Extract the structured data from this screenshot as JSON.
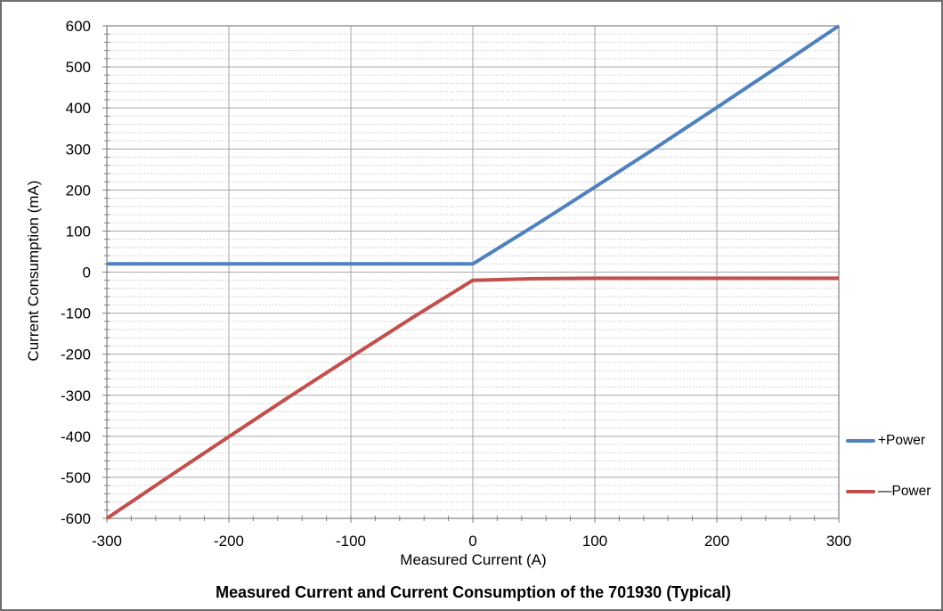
{
  "chart_data": {
    "type": "line",
    "title": "Measured Current and Current Consumption of the 701930 (Typical)",
    "xlabel": "Measured Current (A)",
    "ylabel": "Current Consumption (mA)",
    "xlim": [
      -300,
      300
    ],
    "ylim": [
      -600,
      600
    ],
    "x_major_ticks": [
      -300,
      -200,
      -100,
      0,
      100,
      200,
      300
    ],
    "y_major_ticks": [
      600,
      500,
      400,
      300,
      200,
      100,
      0,
      -100,
      -200,
      -300,
      -400,
      -500,
      -600
    ],
    "x_minor_step": 20,
    "y_minor_step": 20,
    "grid": {
      "horizontal_major": "solid",
      "horizontal_minor": "dotted",
      "vertical_major": "solid",
      "vertical_minor": "none"
    },
    "legend_position": "right-outside",
    "series": [
      {
        "name": "+Power",
        "slug": "plus-power",
        "color": "#4F81BD",
        "points": [
          [
            -300,
            20
          ],
          [
            -250,
            20
          ],
          [
            -200,
            20
          ],
          [
            -150,
            20
          ],
          [
            -100,
            20
          ],
          [
            -50,
            20
          ],
          [
            0,
            20
          ],
          [
            50,
            112
          ],
          [
            100,
            207
          ],
          [
            150,
            303
          ],
          [
            200,
            401
          ],
          [
            250,
            500
          ],
          [
            300,
            600
          ]
        ]
      },
      {
        "name": "—Power",
        "slug": "minus-power",
        "color": "#C0504D",
        "points": [
          [
            -300,
            -600
          ],
          [
            -250,
            -500
          ],
          [
            -200,
            -401
          ],
          [
            -150,
            -303
          ],
          [
            -100,
            -207
          ],
          [
            -50,
            -112
          ],
          [
            0,
            -20
          ],
          [
            50,
            -16
          ],
          [
            100,
            -15
          ],
          [
            150,
            -15
          ],
          [
            200,
            -15
          ],
          [
            250,
            -15
          ],
          [
            300,
            -15
          ]
        ]
      }
    ],
    "style": {
      "grid_major_color": "#A6A6A6",
      "grid_minor_color": "#C6C6C6",
      "axis_color": "#808080",
      "text_color": "#000000",
      "series_stroke_width": 4
    }
  }
}
